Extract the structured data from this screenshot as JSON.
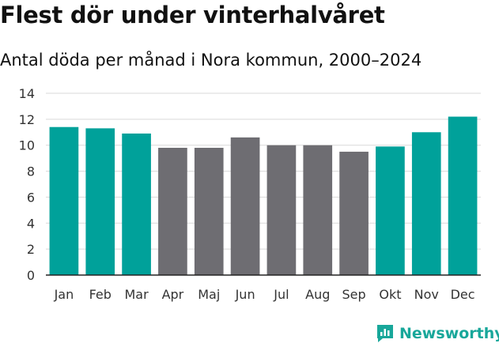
{
  "chart_data": {
    "type": "bar",
    "title": "Flest dör under vinterhalvåret",
    "subtitle": "Antal döda per månad i Nora kommun, 2000–2024",
    "categories": [
      "Jan",
      "Feb",
      "Mar",
      "Apr",
      "Maj",
      "Jun",
      "Jul",
      "Aug",
      "Sep",
      "Okt",
      "Nov",
      "Dec"
    ],
    "values": [
      11.4,
      11.3,
      10.9,
      9.8,
      9.8,
      10.6,
      10.0,
      10.0,
      9.5,
      9.9,
      11.0,
      12.2
    ],
    "highlight": [
      true,
      true,
      true,
      false,
      false,
      false,
      false,
      false,
      false,
      true,
      true,
      true
    ],
    "ylim": [
      0,
      14
    ],
    "yticks": [
      0,
      2,
      4,
      6,
      8,
      10,
      12,
      14
    ],
    "xlabel": "",
    "ylabel": "",
    "grid": true,
    "colors": {
      "highlight": "#00a19a",
      "base": "#6e6d72"
    }
  },
  "brand": {
    "name": "Newsworthy",
    "color": "#18a79a"
  }
}
